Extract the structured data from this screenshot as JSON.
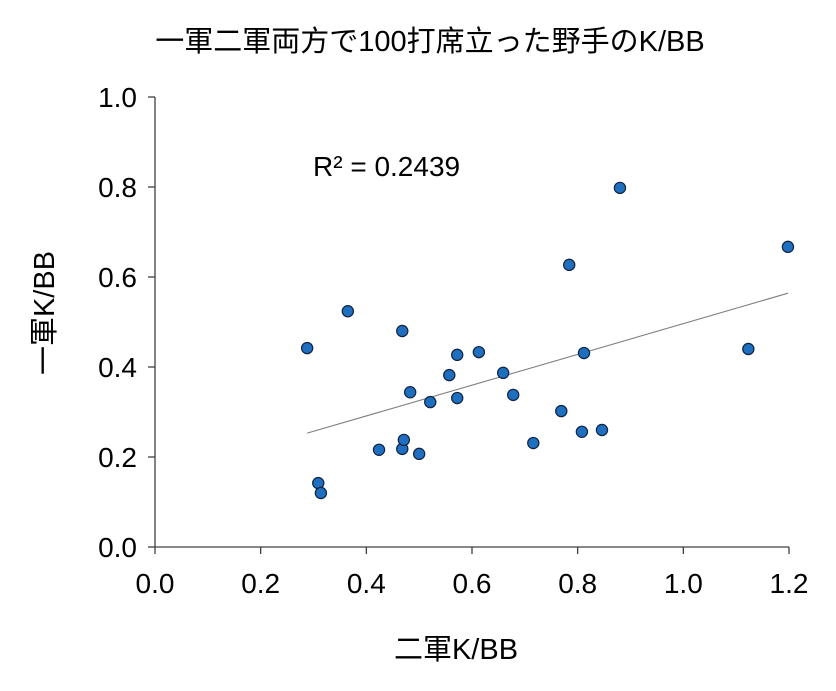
{
  "chart_data": {
    "type": "scatter",
    "title": "一軍二軍両方で100打席立った野手のK/BB",
    "xlabel": "二軍K/BB",
    "ylabel": "一軍K/BB",
    "xlim": [
      0,
      1.2
    ],
    "ylim": [
      0,
      1.0
    ],
    "xticks": [
      "0.0",
      "0.2",
      "0.4",
      "0.6",
      "0.8",
      "1.0",
      "1.2"
    ],
    "yticks": [
      "0.0",
      "0.2",
      "0.4",
      "0.6",
      "0.8",
      "1.0"
    ],
    "grid": false,
    "legend": false,
    "annotation": "R² = 0.2439",
    "x": [
      0.288,
      0.309,
      0.314,
      0.365,
      0.424,
      0.468,
      0.468,
      0.471,
      0.483,
      0.5,
      0.521,
      0.557,
      0.572,
      0.572,
      0.613,
      0.659,
      0.678,
      0.716,
      0.769,
      0.784,
      0.808,
      0.812,
      0.846,
      0.88,
      1.123,
      1.198
    ],
    "y": [
      0.442,
      0.142,
      0.12,
      0.524,
      0.216,
      0.48,
      0.218,
      0.238,
      0.344,
      0.207,
      0.322,
      0.382,
      0.427,
      0.331,
      0.433,
      0.387,
      0.338,
      0.231,
      0.302,
      0.627,
      0.256,
      0.431,
      0.26,
      0.798,
      0.44,
      0.667
    ],
    "trendline": {
      "x": [
        0.288,
        1.198
      ],
      "y": [
        0.253,
        0.564
      ]
    },
    "colors": {
      "marker_fill": "#1F6FC0",
      "marker_edge": "#10233F",
      "trendline": "#7F7F7F",
      "axis": "#404040"
    }
  }
}
